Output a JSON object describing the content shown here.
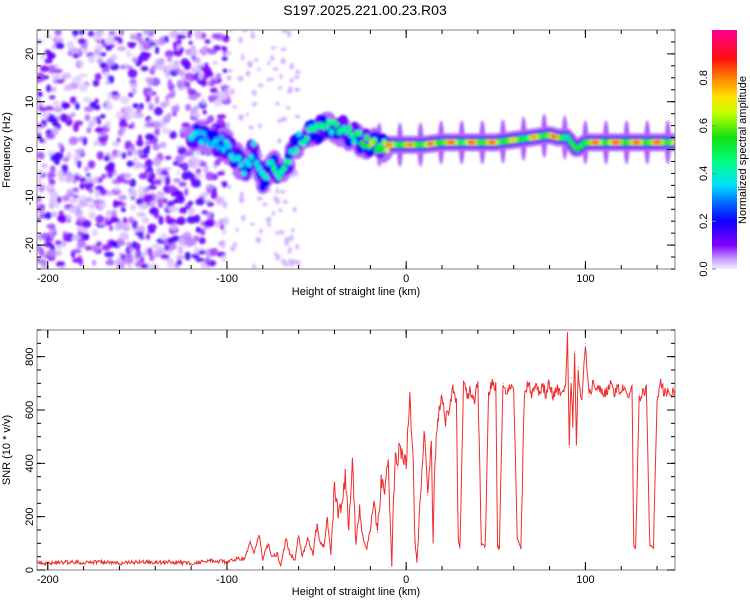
{
  "figure_title": "S197.2025.221.00.23.R03",
  "chart_data": [
    {
      "type": "heatmap",
      "title": "S197.2025.221.00.23.R03",
      "xlabel": "Height of straight line (km)",
      "ylabel": "Frequency (Hz)",
      "xlim": [
        -206,
        150
      ],
      "ylim": [
        -25,
        25
      ],
      "xticks": [
        "-200",
        "-100",
        "0",
        "100"
      ],
      "xtick_values": [
        -200,
        -100,
        0,
        100
      ],
      "yticks": [
        "-20",
        "-10",
        "0",
        "10",
        "20"
      ],
      "ytick_values": [
        -20,
        -10,
        0,
        10,
        20
      ],
      "grid": false,
      "colorbar": {
        "label": "Normalized spectral amplitude",
        "ticks": [
          "0.0",
          "0.2",
          "0.4",
          "0.6",
          "0.8"
        ],
        "tick_values": [
          0.0,
          0.2,
          0.4,
          0.6,
          0.8
        ],
        "range": [
          0,
          1
        ],
        "colormap": [
          "#ffffff",
          "#d8c0f8",
          "#8000ff",
          "#0000ff",
          "#00ffff",
          "#00ff00",
          "#ffff00",
          "#ff0000",
          "#ff0080"
        ]
      },
      "ridge": {
        "description": "dominant frequency track",
        "x": [
          -120,
          -110,
          -100,
          -95,
          -90,
          -85,
          -80,
          -75,
          -70,
          -60,
          -50,
          -40,
          -30,
          -20,
          -10,
          0,
          10,
          20,
          30,
          40,
          50,
          60,
          70,
          80,
          85,
          90,
          95,
          100,
          110,
          120,
          130,
          140,
          150
        ],
        "freq_hz": [
          3,
          2,
          1,
          -2,
          -4,
          0,
          -6,
          -3,
          -5,
          2,
          4,
          5,
          3,
          1,
          1,
          1,
          1,
          1.5,
          1.5,
          1.5,
          1.5,
          2,
          2.5,
          3,
          2.5,
          2.5,
          0,
          1.5,
          1.5,
          1.5,
          1.5,
          1.5,
          1.5
        ],
        "amplitude": [
          0.3,
          0.25,
          0.3,
          0.45,
          0.4,
          0.35,
          0.4,
          0.45,
          0.45,
          0.4,
          0.45,
          0.5,
          0.5,
          0.8,
          0.85,
          0.85,
          0.85,
          0.9,
          0.9,
          0.9,
          0.9,
          0.75,
          0.8,
          0.9,
          0.85,
          0.7,
          0.55,
          0.9,
          0.92,
          0.92,
          0.92,
          0.9,
          0.9
        ]
      },
      "noise_region": {
        "x_range": [
          -206,
          -100
        ],
        "amplitude_range": [
          0.0,
          0.15
        ]
      }
    },
    {
      "type": "line",
      "xlabel": "Height of straight line (km)",
      "ylabel": "SNR (10 * v/v)",
      "xlim": [
        -206,
        150
      ],
      "ylim": [
        0,
        900
      ],
      "xticks": [
        "-200",
        "-100",
        "0",
        "100"
      ],
      "xtick_values": [
        -200,
        -100,
        0,
        100
      ],
      "yticks": [
        "0",
        "200",
        "400",
        "600",
        "800"
      ],
      "ytick_values": [
        0,
        200,
        400,
        600,
        800
      ],
      "grid": false,
      "series": [
        {
          "name": "SNR",
          "color": "#ee2222",
          "x": [
            -206,
            -200,
            -190,
            -180,
            -170,
            -160,
            -150,
            -140,
            -130,
            -120,
            -110,
            -100,
            -95,
            -90,
            -87,
            -85,
            -82,
            -80,
            -77,
            -75,
            -72,
            -70,
            -67,
            -65,
            -62,
            -60,
            -58,
            -55,
            -52,
            -50,
            -48,
            -46,
            -44,
            -42,
            -40,
            -38,
            -36,
            -34,
            -32,
            -30,
            -28,
            -26,
            -24,
            -22,
            -20,
            -18,
            -16,
            -14,
            -12,
            -10,
            -8,
            -7,
            -6,
            -5,
            -4,
            -2,
            0,
            2,
            4,
            5,
            6,
            8,
            10,
            12,
            14,
            15,
            16,
            18,
            20,
            22,
            24,
            26,
            28,
            29,
            30,
            32,
            34,
            36,
            38,
            40,
            42,
            44,
            46,
            48,
            50,
            51,
            52,
            54,
            56,
            58,
            60,
            62,
            64,
            66,
            68,
            70,
            72,
            74,
            76,
            78,
            80,
            82,
            84,
            86,
            88,
            89,
            90,
            91,
            92,
            93,
            94,
            95,
            96,
            97,
            98,
            100,
            102,
            104,
            106,
            108,
            110,
            112,
            114,
            116,
            118,
            120,
            122,
            124,
            126,
            127,
            128,
            130,
            131,
            132,
            134,
            136,
            138,
            140,
            142,
            144,
            146,
            148,
            150
          ],
          "y": [
            30,
            25,
            30,
            28,
            32,
            25,
            30,
            28,
            30,
            25,
            35,
            30,
            40,
            45,
            110,
            60,
            130,
            40,
            100,
            50,
            60,
            20,
            120,
            60,
            40,
            130,
            50,
            120,
            60,
            170,
            100,
            90,
            180,
            60,
            320,
            200,
            250,
            350,
            150,
            400,
            100,
            240,
            120,
            80,
            160,
            250,
            140,
            330,
            300,
            400,
            20,
            270,
            430,
            380,
            460,
            420,
            400,
            650,
            380,
            100,
            30,
            270,
            520,
            280,
            480,
            100,
            420,
            580,
            660,
            560,
            600,
            680,
            640,
            120,
            80,
            690,
            660,
            670,
            640,
            700,
            100,
            80,
            660,
            700,
            690,
            90,
            80,
            700,
            660,
            690,
            680,
            120,
            80,
            670,
            700,
            660,
            680,
            670,
            690,
            660,
            700,
            650,
            680,
            660,
            670,
            700,
            900,
            460,
            720,
            550,
            820,
            480,
            760,
            680,
            640,
            850,
            650,
            700,
            680,
            690,
            660,
            670,
            700,
            660,
            680,
            670,
            690,
            660,
            680,
            90,
            80,
            660,
            650,
            680,
            670,
            90,
            80,
            650,
            700,
            660,
            670,
            650,
            680
          ]
        }
      ]
    }
  ]
}
